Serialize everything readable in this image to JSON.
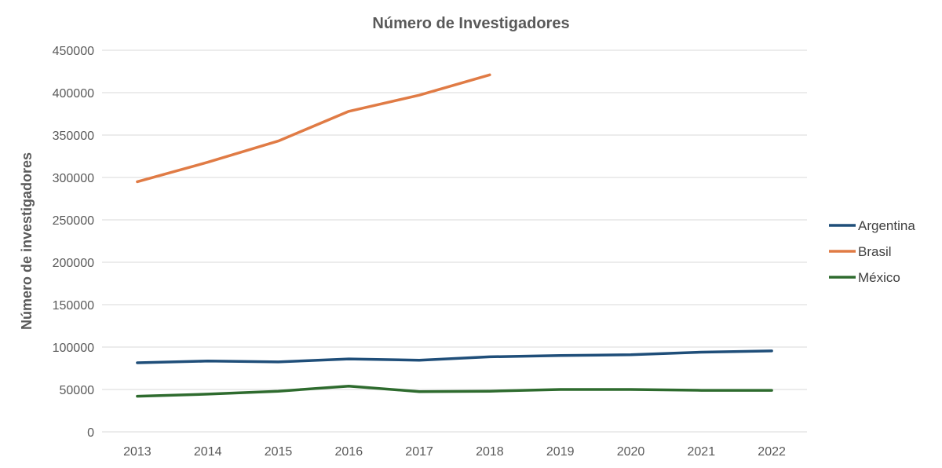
{
  "chart_data": {
    "type": "line",
    "title": "Número de Investigadores",
    "xlabel": "",
    "ylabel": "Número de investigadores",
    "x": [
      "2013",
      "2014",
      "2015",
      "2016",
      "2017",
      "2018",
      "2019",
      "2020",
      "2021",
      "2022"
    ],
    "ylim": [
      0,
      450000
    ],
    "yticks": [
      0,
      50000,
      100000,
      150000,
      200000,
      250000,
      300000,
      350000,
      400000,
      450000
    ],
    "grid": true,
    "legend_position": "right",
    "series": [
      {
        "name": "Argentina",
        "color": "#1f4e79",
        "values": [
          81500,
          83500,
          82500,
          86000,
          84500,
          88500,
          90000,
          91000,
          94000,
          95500
        ]
      },
      {
        "name": "Brasil",
        "color": "#e07b45",
        "values": [
          295000,
          318000,
          343000,
          378000,
          397000,
          421000,
          null,
          null,
          null,
          null
        ]
      },
      {
        "name": "México",
        "color": "#2e6b2e",
        "values": [
          42000,
          44500,
          48000,
          54000,
          47500,
          48000,
          50000,
          50000,
          49000,
          49000
        ]
      }
    ]
  }
}
